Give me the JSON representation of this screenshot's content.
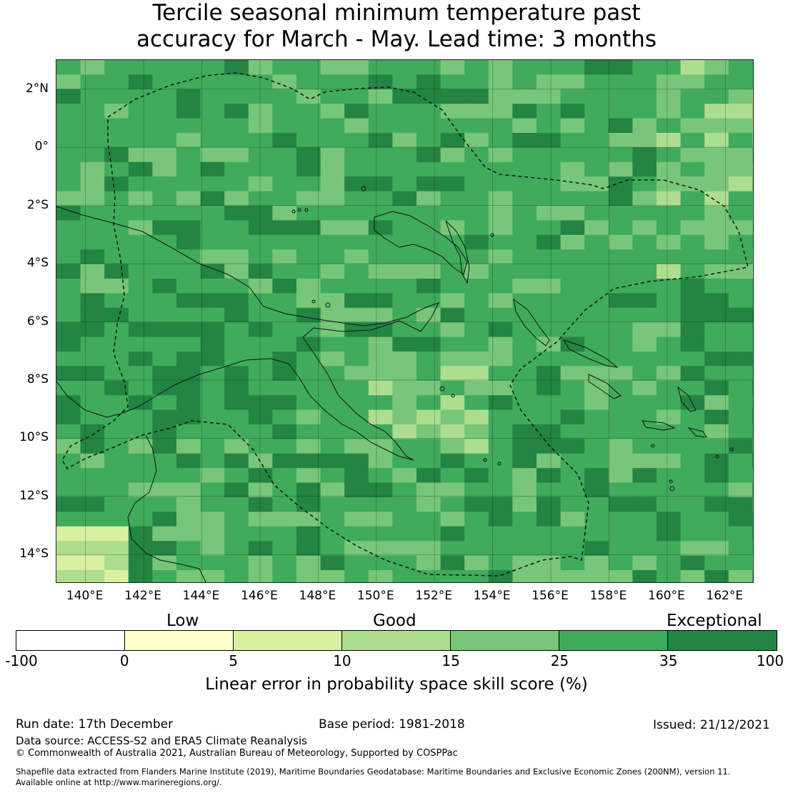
{
  "title": {
    "line1": "Tercile seasonal minimum temperature past",
    "line2": "accuracy for March - May. Lead time: 3 months"
  },
  "map": {
    "lat_labels": [
      "2°N",
      "0°",
      "2°S",
      "4°S",
      "6°S",
      "8°S",
      "10°S",
      "12°S",
      "14°S"
    ],
    "lon_labels": [
      "140°E",
      "142°E",
      "144°E",
      "146°E",
      "148°E",
      "150°E",
      "152°E",
      "154°E",
      "156°E",
      "158°E",
      "160°E",
      "162°E"
    ],
    "extent": {
      "lon_min": 139.0,
      "lon_max": 163.0,
      "lat_min": -15.0,
      "lat_max": 3.0
    },
    "lat_ticks": [
      2,
      0,
      -2,
      -4,
      -6,
      -8,
      -10,
      -12,
      -14
    ],
    "lon_ticks": [
      140,
      142,
      144,
      146,
      148,
      150,
      152,
      154,
      156,
      158,
      160,
      162
    ],
    "grid_cell_degrees": 0.8333
  },
  "legend": {
    "categories": [
      "Low",
      "Good",
      "Exceptional"
    ],
    "ticks": [
      "-100",
      "0",
      "5",
      "10",
      "15",
      "25",
      "35",
      "100"
    ],
    "colors": [
      "#ffffff",
      "#ffffcc",
      "#d9f0a3",
      "#addd8e",
      "#78c679",
      "#41ab5d",
      "#238443"
    ],
    "label": "Linear error in probability space skill score (%)"
  },
  "footer": {
    "run_date": "Run date: 17th December",
    "base_period": "Base period: 1981-2018",
    "issued": "Issued: 21/12/2021",
    "data_source": "Data source: ACCESS-S2 and ERA5 Climate Reanalysis",
    "copyright": "© Commonwealth of Australia 2021, Australian Bureau of Meteorology, Supported by COSPPac",
    "shapefile_line1": "Shapefile data extracted from Flanders Marine Institute (2019), Maritime Boundaries Geodatabase: Maritime Boundaries and Exclusive Economic Zones (200NM), version 11.",
    "shapefile_line2": "Available online at http://www.marineregions.org/."
  }
}
